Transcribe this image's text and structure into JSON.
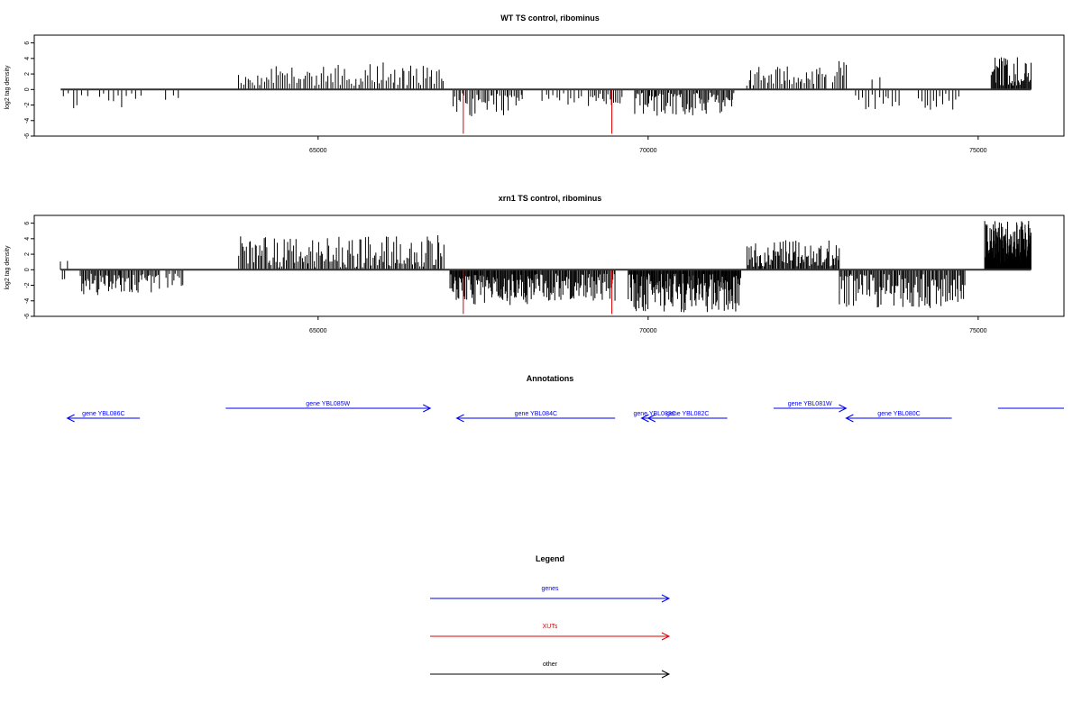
{
  "colors": {
    "data": "#000000",
    "xut": "#e00000",
    "gene": "#0000ee",
    "other": "#000000"
  },
  "chart_data": [
    {
      "type": "bar",
      "title": "WT TS control, ribominus",
      "xlabel": "",
      "ylabel": "log2 tag density",
      "xlim": [
        60700,
        76300
      ],
      "ylim": [
        -6,
        7
      ],
      "x_ticks": [
        65000,
        70000,
        75000
      ],
      "x_tick_labels": [
        "65000",
        "70000",
        "75000"
      ],
      "y_ticks": [
        -6,
        -4,
        -2,
        0,
        2,
        4,
        6
      ],
      "y_tick_labels": [
        "-6",
        "-4",
        "-2",
        "0",
        "2",
        "4",
        "6"
      ],
      "baseline": {
        "x": [
          61100,
          75800
        ],
        "y": 0
      },
      "grid": false,
      "highlight_bars": [
        {
          "x": 67200,
          "value": -5.7
        },
        {
          "x": 69450,
          "value": -5.7
        }
      ],
      "regions": [
        {
          "x": [
            61150,
            61500
          ],
          "n": 6,
          "seed": 11,
          "range": [
            -2.9,
            -0.4
          ]
        },
        {
          "x": [
            61700,
            62300
          ],
          "n": 10,
          "seed": 12,
          "range": [
            -2.4,
            -0.4
          ]
        },
        {
          "x": [
            62700,
            62900
          ],
          "n": 3,
          "seed": 13,
          "range": [
            -2.6,
            -0.6
          ]
        },
        {
          "x": [
            63800,
            66900
          ],
          "n": 90,
          "seed": 14,
          "range": [
            0.5,
            3.5
          ]
        },
        {
          "x": [
            67050,
            68100
          ],
          "n": 40,
          "seed": 15,
          "range": [
            -3.5,
            -0.5
          ]
        },
        {
          "x": [
            68400,
            69000
          ],
          "n": 12,
          "seed": 16,
          "range": [
            -2.0,
            -0.4
          ]
        },
        {
          "x": [
            69100,
            69600
          ],
          "n": 18,
          "seed": 17,
          "range": [
            -2.6,
            -0.5
          ]
        },
        {
          "x": [
            69800,
            71300
          ],
          "n": 80,
          "seed": 18,
          "range": [
            -3.5,
            -0.4
          ]
        },
        {
          "x": [
            71500,
            72700
          ],
          "n": 40,
          "seed": 19,
          "range": [
            0.5,
            3.0
          ]
        },
        {
          "x": [
            72800,
            73000
          ],
          "n": 8,
          "seed": 20,
          "range": [
            0.8,
            3.8
          ]
        },
        {
          "x": [
            73150,
            73800
          ],
          "n": 14,
          "seed": 21,
          "range": [
            -2.9,
            -0.5
          ]
        },
        {
          "x": [
            73400,
            73500
          ],
          "n": 2,
          "seed": 22,
          "range": [
            1.0,
            2.5
          ]
        },
        {
          "x": [
            74100,
            74700
          ],
          "n": 14,
          "seed": 23,
          "range": [
            -2.9,
            -0.5
          ]
        },
        {
          "x": [
            75200,
            75800
          ],
          "n": 45,
          "seed": 24,
          "range": [
            0.5,
            4.3
          ]
        }
      ]
    },
    {
      "type": "bar",
      "title": "xrn1 TS control, ribominus",
      "xlabel": "",
      "ylabel": "log2 tag density",
      "xlim": [
        60700,
        76300
      ],
      "ylim": [
        -6,
        7
      ],
      "x_ticks": [
        65000,
        70000,
        75000
      ],
      "x_tick_labels": [
        "65000",
        "70000",
        "75000"
      ],
      "y_ticks": [
        -6,
        -4,
        -2,
        0,
        2,
        4,
        6
      ],
      "y_tick_labels": [
        "-6",
        "-4",
        "-2",
        "0",
        "2",
        "4",
        "6"
      ],
      "baseline": {
        "x": [
          61100,
          75800
        ],
        "y": 0
      },
      "grid": false,
      "highlight_bars": [
        {
          "x": 67200,
          "value": -5.7
        },
        {
          "x": 69450,
          "value": -5.7
        }
      ],
      "regions": [
        {
          "x": [
            61100,
            61200
          ],
          "n": 4,
          "seed": 31,
          "range": [
            -2.0,
            1.2
          ]
        },
        {
          "x": [
            61400,
            62000
          ],
          "n": 35,
          "seed": 32,
          "range": [
            -3.3,
            -0.5
          ]
        },
        {
          "x": [
            62000,
            62600
          ],
          "n": 30,
          "seed": 33,
          "range": [
            -3.2,
            -0.5
          ]
        },
        {
          "x": [
            62700,
            62950
          ],
          "n": 10,
          "seed": 34,
          "range": [
            -2.5,
            -0.5
          ]
        },
        {
          "x": [
            63800,
            66900
          ],
          "n": 140,
          "seed": 35,
          "range": [
            0.3,
            4.5
          ]
        },
        {
          "x": [
            67000,
            68300
          ],
          "n": 110,
          "seed": 36,
          "range": [
            -4.6,
            -0.6
          ]
        },
        {
          "x": [
            68300,
            69500
          ],
          "n": 80,
          "seed": 37,
          "range": [
            -4.0,
            -0.5
          ]
        },
        {
          "x": [
            69700,
            71400
          ],
          "n": 160,
          "seed": 38,
          "range": [
            -5.5,
            -0.5
          ]
        },
        {
          "x": [
            71500,
            72900
          ],
          "n": 90,
          "seed": 39,
          "range": [
            0.4,
            3.8
          ]
        },
        {
          "x": [
            72900,
            74800
          ],
          "n": 110,
          "seed": 40,
          "range": [
            -5.0,
            -0.5
          ]
        },
        {
          "x": [
            75100,
            75800
          ],
          "n": 160,
          "seed": 41,
          "range": [
            0.5,
            6.3
          ]
        }
      ]
    }
  ],
  "annotations": {
    "title": "Annotations",
    "genes": [
      {
        "label": "gene YBL086C",
        "start": 62300,
        "end": 61200,
        "row": 2
      },
      {
        "label": "gene YBL085W",
        "start": 63600,
        "end": 66700,
        "row": 1
      },
      {
        "label": "gene YBL084C",
        "start": 69500,
        "end": 67100,
        "row": 2
      },
      {
        "label": "gene YBL083C",
        "start": 70300,
        "end": 69900,
        "row": 2
      },
      {
        "label": "gene YBL082C",
        "start": 71200,
        "end": 70000,
        "row": 2
      },
      {
        "label": "gene YBL081W",
        "start": 71900,
        "end": 73000,
        "row": 1
      },
      {
        "label": "gene YBL080C",
        "start": 74600,
        "end": 73000,
        "row": 2
      },
      {
        "label": "",
        "start": 75300,
        "end": 76300,
        "row": 1
      }
    ]
  },
  "legend": {
    "title": "Legend",
    "entries": [
      {
        "label": "genes",
        "color": "#0000ee"
      },
      {
        "label": "XUTs",
        "color": "#e00000"
      },
      {
        "label": "other",
        "color": "#000000"
      }
    ]
  }
}
